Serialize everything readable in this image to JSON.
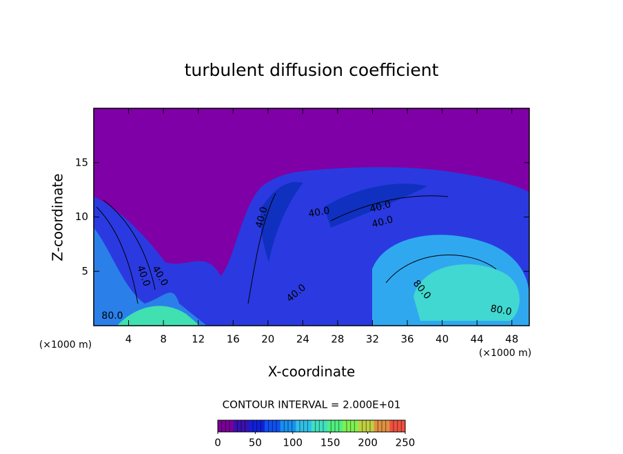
{
  "chart_data": {
    "type": "contour",
    "title": "turbulent diffusion coefficient",
    "x_label": "X-coordinate",
    "y_label": "Z-coordinate",
    "x_unit": "(×1000 m)",
    "y_unit": "(×1000 m)",
    "xlim": [
      0,
      50
    ],
    "ylim": [
      0,
      20
    ],
    "xticks": [
      4,
      8,
      12,
      16,
      20,
      24,
      28,
      32,
      36,
      40,
      44,
      48
    ],
    "yticks": [
      5,
      10,
      15
    ],
    "contour_interval": "CONTOUR INTERVAL = 2.000E+01",
    "contour_labels": [
      {
        "value": 80,
        "label": "80.0"
      },
      {
        "value": 40,
        "label": "40.0"
      },
      {
        "value": 40,
        "label": "40.0"
      },
      {
        "value": 40,
        "label": "40.0"
      },
      {
        "value": 40,
        "label": "40.0"
      },
      {
        "value": 40,
        "label": "40.0"
      },
      {
        "value": 40,
        "label": "40.0"
      },
      {
        "value": 40,
        "label": "40.0"
      },
      {
        "value": 80,
        "label": "80.0"
      },
      {
        "value": 80,
        "label": "80.0"
      }
    ],
    "colorbar": {
      "lim": [
        0,
        250
      ],
      "ticks": [
        0,
        50,
        100,
        150,
        200,
        250
      ],
      "colors": [
        "#7a0098",
        "#3a10b0",
        "#1020d8",
        "#1050f0",
        "#1890f0",
        "#30c0e8",
        "#40e0c0",
        "#50f080",
        "#80f050",
        "#c0d040",
        "#e09040",
        "#f05040"
      ]
    }
  }
}
